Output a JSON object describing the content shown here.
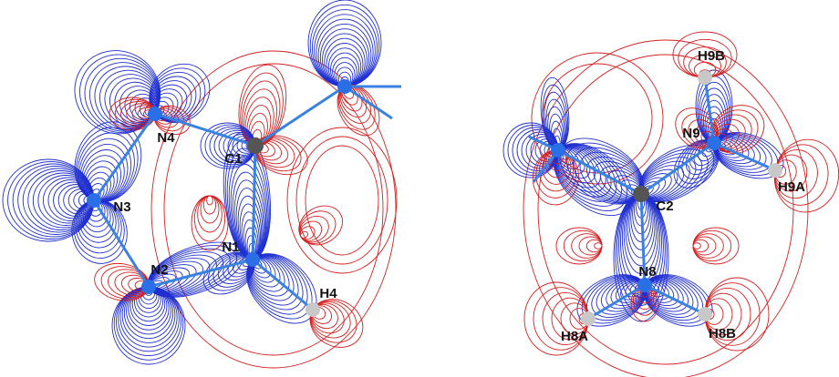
{
  "panels": [
    {
      "atoms": [
        {
          "label": "N4"
        },
        {
          "label": "C1"
        },
        {
          "label": "N3"
        },
        {
          "label": "N2"
        },
        {
          "label": "N1"
        },
        {
          "label": "H4"
        }
      ]
    },
    {
      "atoms": [
        {
          "label": "H9B"
        },
        {
          "label": "N9"
        },
        {
          "label": "H9A"
        },
        {
          "label": "C2"
        },
        {
          "label": "N8"
        },
        {
          "label": "H8A"
        },
        {
          "label": "H8B"
        }
      ]
    }
  ]
}
